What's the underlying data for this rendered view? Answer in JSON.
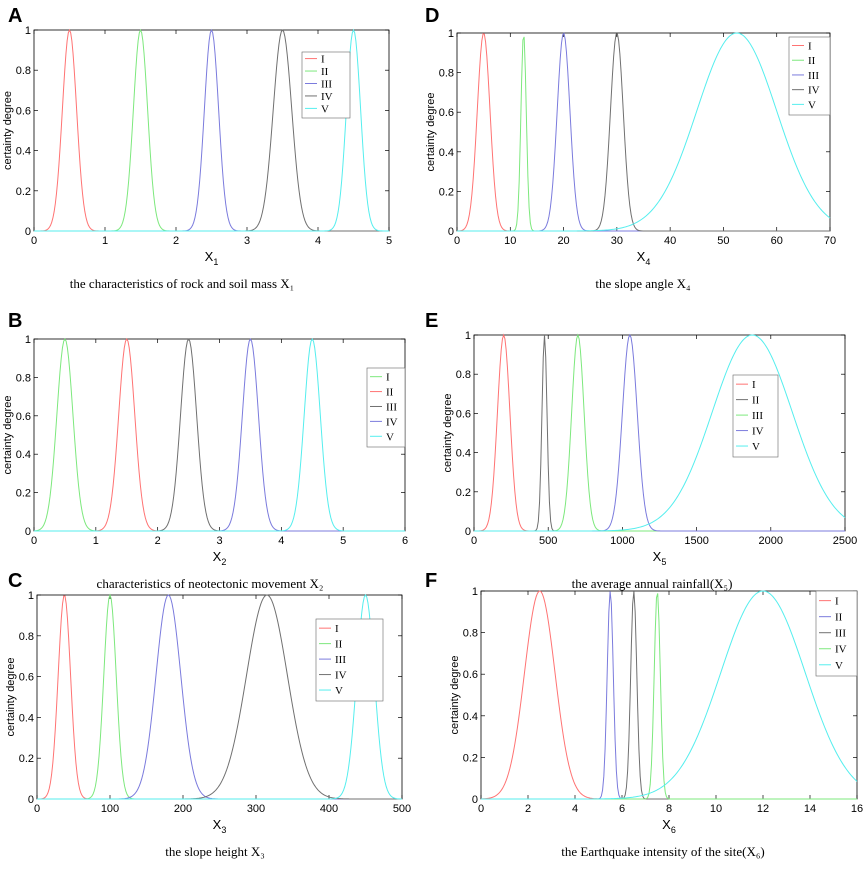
{
  "chart_data": [
    {
      "type": "line",
      "panel_label": "A",
      "xlabel": "X",
      "xlabel_sub": "1",
      "ylabel": "certainty degree",
      "caption": "the characteristics of rock and soil mass X₁",
      "xlim": [
        0,
        5
      ],
      "ylim": [
        0,
        1
      ],
      "xticks": [
        "0",
        "1",
        "2",
        "3",
        "4",
        "5"
      ],
      "yticks": [
        "0",
        "0.2",
        "0.4",
        "0.6",
        "0.8",
        "1"
      ],
      "series": [
        {
          "name": "I",
          "color": "#ff7373",
          "center": 0.5,
          "spread": 0.1
        },
        {
          "name": "II",
          "color": "#7de87d",
          "center": 1.5,
          "spread": 0.1
        },
        {
          "name": "III",
          "color": "#7b7bdd",
          "center": 2.5,
          "spread": 0.1
        },
        {
          "name": "IV",
          "color": "#707070",
          "center": 3.5,
          "spread": 0.13
        },
        {
          "name": "V",
          "color": "#55eeee",
          "center": 4.5,
          "spread": 0.1
        }
      ]
    },
    {
      "type": "line",
      "panel_label": "D",
      "xlabel": "X",
      "xlabel_sub": "4",
      "ylabel": "certainty degree",
      "caption": "the slope angle X₄",
      "xlim": [
        0,
        70
      ],
      "ylim": [
        0,
        1
      ],
      "xticks": [
        "0",
        "10",
        "20",
        "30",
        "40",
        "50",
        "60",
        "70"
      ],
      "yticks": [
        "0",
        "0.2",
        "0.4",
        "0.6",
        "0.8",
        "1"
      ],
      "series": [
        {
          "name": "I",
          "color": "#ff7373",
          "center": 5,
          "spread": 1.2
        },
        {
          "name": "II",
          "color": "#7de87d",
          "center": 12.5,
          "spread": 0.5
        },
        {
          "name": "III",
          "color": "#7b7bdd",
          "center": 20,
          "spread": 1.2
        },
        {
          "name": "IV",
          "color": "#707070",
          "center": 30,
          "spread": 1.2
        },
        {
          "name": "V",
          "color": "#55eeee",
          "center": 52.5,
          "spread": 7.5
        }
      ]
    },
    {
      "type": "line",
      "panel_label": "B",
      "xlabel": "X",
      "xlabel_sub": "2",
      "ylabel": "certainty degree",
      "caption": "characteristics of neotectonic movement X₂",
      "xlim": [
        0,
        6
      ],
      "ylim": [
        0,
        1
      ],
      "xticks": [
        "0",
        "1",
        "2",
        "3",
        "4",
        "5",
        "6"
      ],
      "yticks": [
        "0",
        "0.2",
        "0.4",
        "0.6",
        "0.8",
        "1"
      ],
      "series": [
        {
          "name": "I",
          "color": "#7de87d",
          "center": 0.5,
          "spread": 0.13
        },
        {
          "name": "II",
          "color": "#ff7373",
          "center": 1.5,
          "spread": 0.13
        },
        {
          "name": "III",
          "color": "#707070",
          "center": 2.5,
          "spread": 0.13
        },
        {
          "name": "IV",
          "color": "#7b7bdd",
          "center": 3.5,
          "spread": 0.13
        },
        {
          "name": "V",
          "color": "#55eeee",
          "center": 4.5,
          "spread": 0.13
        }
      ]
    },
    {
      "type": "line",
      "panel_label": "E",
      "xlabel": "X",
      "xlabel_sub": "5",
      "ylabel": "certainty degree",
      "caption": "the average annual rainfall(X₅)",
      "xlim": [
        0,
        2500
      ],
      "ylim": [
        0,
        1
      ],
      "xticks": [
        "0",
        "500",
        "1000",
        "1500",
        "2000",
        "2500"
      ],
      "yticks": [
        "0",
        "0.2",
        "0.4",
        "0.6",
        "0.8",
        "1"
      ],
      "series": [
        {
          "name": "I",
          "color": "#ff7373",
          "center": 200,
          "spread": 42
        },
        {
          "name": "II",
          "color": "#707070",
          "center": 475,
          "spread": 17
        },
        {
          "name": "III",
          "color": "#7de87d",
          "center": 700,
          "spread": 42
        },
        {
          "name": "IV",
          "color": "#7b7bdd",
          "center": 1050,
          "spread": 50
        },
        {
          "name": "V",
          "color": "#55eeee",
          "center": 1875,
          "spread": 270
        }
      ]
    },
    {
      "type": "line",
      "panel_label": "C",
      "xlabel": "X",
      "xlabel_sub": "3",
      "ylabel": "certainty degree",
      "caption": "the slope height X₃",
      "xlim": [
        0,
        500
      ],
      "ylim": [
        0,
        1
      ],
      "xticks": [
        "0",
        "100",
        "200",
        "300",
        "400",
        "500"
      ],
      "yticks": [
        "0",
        "0.2",
        "0.4",
        "0.6",
        "0.8",
        "1"
      ],
      "series": [
        {
          "name": "I",
          "color": "#ff7373",
          "center": 37.5,
          "spread": 8.5
        },
        {
          "name": "II",
          "color": "#7de87d",
          "center": 100,
          "spread": 8.5
        },
        {
          "name": "III",
          "color": "#7b7bdd",
          "center": 180,
          "spread": 17
        },
        {
          "name": "IV",
          "color": "#707070",
          "center": 315,
          "spread": 28
        },
        {
          "name": "V",
          "color": "#55eeee",
          "center": 450,
          "spread": 12
        }
      ]
    },
    {
      "type": "line",
      "panel_label": "F",
      "xlabel": "X",
      "xlabel_sub": "6",
      "ylabel": "certainty degree",
      "caption": "the Earthquake intensity of the site(X₆)",
      "xlim": [
        0,
        16
      ],
      "ylim": [
        0,
        1
      ],
      "xticks": [
        "0",
        "2",
        "4",
        "6",
        "8",
        "10",
        "12",
        "14",
        "16"
      ],
      "yticks": [
        "0",
        "0.2",
        "0.4",
        "0.6",
        "0.8",
        "1"
      ],
      "series": [
        {
          "name": "I",
          "color": "#ff7373",
          "center": 2.5,
          "spread": 0.65
        },
        {
          "name": "II",
          "color": "#7b7bdd",
          "center": 5.5,
          "spread": 0.13
        },
        {
          "name": "III",
          "color": "#707070",
          "center": 6.5,
          "spread": 0.13
        },
        {
          "name": "IV",
          "color": "#7de87d",
          "center": 7.5,
          "spread": 0.13
        },
        {
          "name": "V",
          "color": "#55eeee",
          "center": 12,
          "spread": 1.8
        }
      ]
    }
  ]
}
